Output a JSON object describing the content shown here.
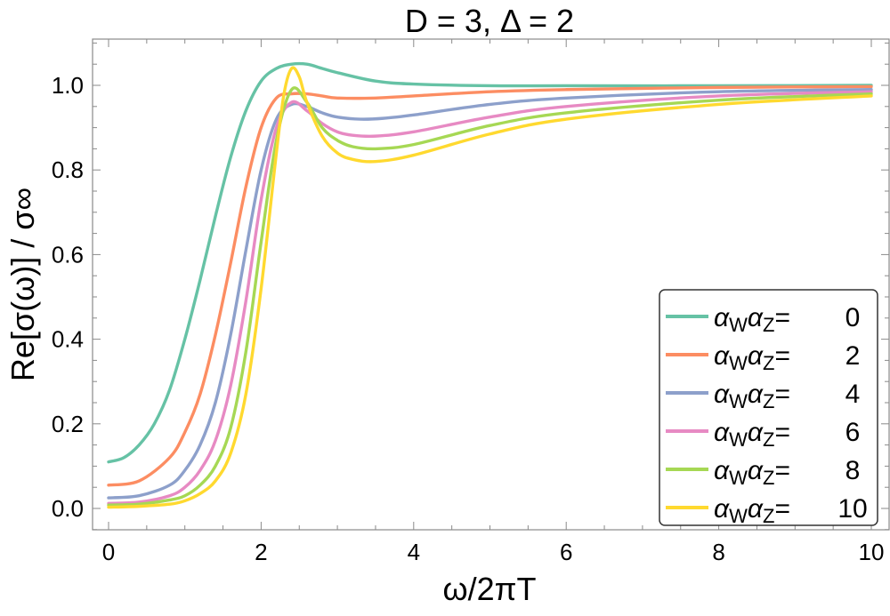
{
  "chart_data": {
    "type": "line",
    "title": "D = 3, Δ = 2",
    "xlabel": "ω/2πT",
    "ylabel": "Re[σ(ω)] / σ∞",
    "xlim": [
      0,
      10
    ],
    "ylim": [
      -0.05,
      1.1
    ],
    "xticks": [
      "0",
      "2",
      "4",
      "6",
      "8",
      "10"
    ],
    "yticks": [
      "0.0",
      "0.2",
      "0.4",
      "0.6",
      "0.8",
      "1.0"
    ],
    "grid": false,
    "legend_position": "bottom-right",
    "legend_prefix": "α",
    "legend_sub1": "W",
    "legend_sub2": "Z",
    "series": [
      {
        "name": "αWαZ= 0",
        "value_label": " 0",
        "color": "#66c2a5",
        "x": [
          0,
          0.2,
          0.4,
          0.6,
          0.8,
          1.0,
          1.2,
          1.4,
          1.6,
          1.8,
          2.0,
          2.2,
          2.4,
          2.6,
          2.8,
          3.0,
          3.5,
          4.0,
          5.0,
          6.0,
          8.0,
          10.0
        ],
        "y": [
          0.11,
          0.12,
          0.15,
          0.2,
          0.28,
          0.4,
          0.54,
          0.69,
          0.83,
          0.94,
          1.01,
          1.04,
          1.05,
          1.05,
          1.04,
          1.03,
          1.01,
          1.003,
          0.999,
          0.999,
          0.999,
          1.0
        ]
      },
      {
        "name": "αWαZ= 2",
        "value_label": " 2",
        "color": "#fc8d62",
        "x": [
          0,
          0.4,
          0.8,
          1.0,
          1.2,
          1.4,
          1.6,
          1.8,
          2.0,
          2.2,
          2.4,
          2.6,
          2.8,
          3.0,
          3.5,
          4.0,
          5.0,
          6.0,
          8.0,
          10.0
        ],
        "y": [
          0.055,
          0.065,
          0.12,
          0.18,
          0.27,
          0.41,
          0.58,
          0.76,
          0.9,
          0.97,
          0.98,
          0.98,
          0.975,
          0.97,
          0.97,
          0.975,
          0.985,
          0.99,
          0.995,
          0.997
        ]
      },
      {
        "name": "αWαZ= 4",
        "value_label": " 4",
        "color": "#8da0cb",
        "x": [
          0,
          0.4,
          0.8,
          1.0,
          1.2,
          1.4,
          1.6,
          1.8,
          2.0,
          2.2,
          2.4,
          2.6,
          2.8,
          3.0,
          3.3,
          3.6,
          4.0,
          5.0,
          6.0,
          8.0,
          10.0
        ],
        "y": [
          0.025,
          0.03,
          0.055,
          0.09,
          0.15,
          0.25,
          0.41,
          0.61,
          0.8,
          0.92,
          0.955,
          0.95,
          0.935,
          0.925,
          0.92,
          0.922,
          0.93,
          0.955,
          0.97,
          0.985,
          0.99
        ]
      },
      {
        "name": "αWαZ= 6",
        "value_label": " 6",
        "color": "#e78ac3",
        "x": [
          0,
          0.4,
          0.8,
          1.0,
          1.2,
          1.4,
          1.6,
          1.8,
          2.0,
          2.2,
          2.4,
          2.6,
          2.8,
          3.0,
          3.2,
          3.5,
          4.0,
          5.0,
          6.0,
          8.0,
          10.0
        ],
        "y": [
          0.012,
          0.015,
          0.03,
          0.05,
          0.09,
          0.16,
          0.29,
          0.49,
          0.73,
          0.9,
          0.96,
          0.94,
          0.91,
          0.89,
          0.882,
          0.88,
          0.89,
          0.925,
          0.95,
          0.975,
          0.985
        ]
      },
      {
        "name": "αWαZ= 8",
        "value_label": " 8",
        "color": "#a6d854",
        "x": [
          0,
          0.4,
          0.8,
          1.0,
          1.2,
          1.4,
          1.6,
          1.8,
          2.0,
          2.2,
          2.4,
          2.6,
          2.8,
          3.0,
          3.2,
          3.5,
          4.0,
          5.0,
          6.0,
          8.0,
          10.0
        ],
        "y": [
          0.008,
          0.01,
          0.02,
          0.03,
          0.055,
          0.1,
          0.19,
          0.37,
          0.63,
          0.87,
          0.99,
          0.96,
          0.9,
          0.87,
          0.855,
          0.85,
          0.86,
          0.905,
          0.935,
          0.965,
          0.98
        ]
      },
      {
        "name": "αWαZ= 10",
        "value_label": " 10",
        "color": "#ffd92f",
        "x": [
          0,
          0.4,
          0.8,
          1.0,
          1.2,
          1.4,
          1.6,
          1.8,
          2.0,
          2.2,
          2.3,
          2.4,
          2.5,
          2.6,
          2.8,
          3.0,
          3.2,
          3.5,
          4.0,
          5.0,
          6.0,
          8.0,
          10.0
        ],
        "y": [
          0.003,
          0.005,
          0.01,
          0.018,
          0.035,
          0.065,
          0.13,
          0.27,
          0.52,
          0.84,
          0.98,
          1.04,
          1.02,
          0.96,
          0.88,
          0.84,
          0.825,
          0.82,
          0.835,
          0.885,
          0.92,
          0.955,
          0.975
        ]
      }
    ]
  }
}
